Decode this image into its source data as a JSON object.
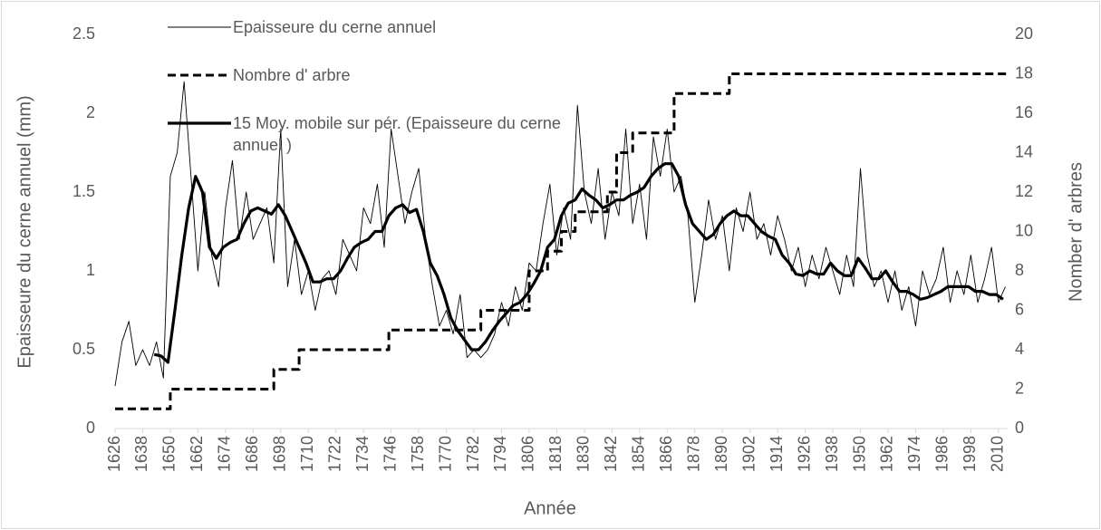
{
  "chart_data": {
    "type": "line",
    "xlabel": "Année",
    "ylabel": "Epaisseure du cerne annuel (mm)",
    "y2label": "Nomber d' arbres",
    "xlim": [
      1626,
      2014
    ],
    "xticks": [
      1626,
      1638,
      1650,
      1662,
      1674,
      1686,
      1698,
      1710,
      1722,
      1734,
      1746,
      1758,
      1770,
      1782,
      1794,
      1806,
      1818,
      1830,
      1842,
      1854,
      1866,
      1878,
      1890,
      1902,
      1914,
      1926,
      1938,
      1950,
      1962,
      1974,
      1986,
      1998,
      2010
    ],
    "ylim": [
      0,
      2.5
    ],
    "yticks": [
      0,
      0.5,
      1,
      1.5,
      2,
      2.5
    ],
    "y2lim": [
      0,
      20
    ],
    "y2ticks": [
      0,
      2,
      4,
      6,
      8,
      10,
      12,
      14,
      16,
      18,
      20
    ],
    "grid": false,
    "legend": "top-left",
    "series": [
      {
        "name": "Epaisseure du cerne annuel",
        "color": "#000000",
        "style": "thin",
        "x": [
          1626,
          1629,
          1632,
          1635,
          1638,
          1641,
          1644,
          1647,
          1650,
          1653,
          1656,
          1659,
          1662,
          1665,
          1668,
          1671,
          1674,
          1677,
          1680,
          1683,
          1686,
          1689,
          1692,
          1695,
          1698,
          1701,
          1704,
          1707,
          1710,
          1713,
          1716,
          1719,
          1722,
          1725,
          1728,
          1731,
          1734,
          1737,
          1740,
          1743,
          1746,
          1749,
          1752,
          1755,
          1758,
          1761,
          1764,
          1767,
          1770,
          1773,
          1776,
          1779,
          1782,
          1785,
          1788,
          1791,
          1794,
          1797,
          1800,
          1803,
          1806,
          1809,
          1812,
          1815,
          1818,
          1821,
          1824,
          1827,
          1830,
          1833,
          1836,
          1839,
          1842,
          1845,
          1848,
          1851,
          1854,
          1857,
          1860,
          1863,
          1866,
          1869,
          1872,
          1875,
          1878,
          1881,
          1884,
          1887,
          1890,
          1893,
          1896,
          1899,
          1902,
          1905,
          1908,
          1911,
          1914,
          1917,
          1920,
          1923,
          1926,
          1929,
          1932,
          1935,
          1938,
          1941,
          1944,
          1947,
          1950,
          1953,
          1956,
          1959,
          1962,
          1965,
          1968,
          1971,
          1974,
          1977,
          1980,
          1983,
          1986,
          1989,
          1992,
          1995,
          1998,
          2001,
          2004,
          2007,
          2010,
          2013
        ],
        "values": [
          0.27,
          0.55,
          0.68,
          0.4,
          0.5,
          0.4,
          0.55,
          0.32,
          1.6,
          1.75,
          2.2,
          1.6,
          1.0,
          1.5,
          1.1,
          0.9,
          1.4,
          1.7,
          1.2,
          1.5,
          1.2,
          1.3,
          1.4,
          1.05,
          1.9,
          0.9,
          1.2,
          0.85,
          1.0,
          0.75,
          0.95,
          1.0,
          0.85,
          1.2,
          1.1,
          1.0,
          1.4,
          1.3,
          1.55,
          1.15,
          1.9,
          1.6,
          1.3,
          1.5,
          1.65,
          1.2,
          0.9,
          0.65,
          0.75,
          0.6,
          0.85,
          0.45,
          0.5,
          0.45,
          0.5,
          0.6,
          0.8,
          0.65,
          0.9,
          0.75,
          1.05,
          1.0,
          1.3,
          1.55,
          1.1,
          1.4,
          1.2,
          2.05,
          1.5,
          1.3,
          1.65,
          1.2,
          1.5,
          1.35,
          1.9,
          1.3,
          1.55,
          1.2,
          1.85,
          1.6,
          1.9,
          1.5,
          1.6,
          1.35,
          0.8,
          1.1,
          1.45,
          1.2,
          1.35,
          1.0,
          1.4,
          1.25,
          1.5,
          1.2,
          1.3,
          1.1,
          1.35,
          1.2,
          1.0,
          1.15,
          0.9,
          1.1,
          0.95,
          1.15,
          1.0,
          0.85,
          1.1,
          0.9,
          1.65,
          1.1,
          0.9,
          1.0,
          0.8,
          1.0,
          0.75,
          0.9,
          0.65,
          1.0,
          0.85,
          0.95,
          1.15,
          0.8,
          1.0,
          0.85,
          1.1,
          0.8,
          0.95,
          1.15,
          0.8,
          0.9
        ]
      },
      {
        "name": "Nombre d' arbre",
        "color": "#000000",
        "style": "dashed",
        "step": true,
        "axis": "y2",
        "x": [
          1626,
          1650,
          1695,
          1706,
          1745,
          1785,
          1806,
          1814,
          1820,
          1826,
          1840,
          1844,
          1851,
          1869,
          1893,
          2014
        ],
        "values": [
          1,
          2,
          3,
          4,
          5,
          6,
          8,
          9,
          10,
          11,
          12,
          14,
          15,
          17,
          18,
          18
        ]
      },
      {
        "name": "15 Moy. mobile sur pér. (Epaisseure du cerne annuel )",
        "color": "#000000",
        "style": "thick",
        "x": [
          1643,
          1646,
          1649,
          1652,
          1655,
          1658,
          1661,
          1664,
          1667,
          1670,
          1673,
          1676,
          1679,
          1682,
          1685,
          1688,
          1691,
          1694,
          1697,
          1700,
          1703,
          1706,
          1709,
          1712,
          1715,
          1718,
          1721,
          1724,
          1727,
          1730,
          1733,
          1736,
          1739,
          1742,
          1745,
          1748,
          1751,
          1754,
          1757,
          1760,
          1763,
          1766,
          1769,
          1772,
          1775,
          1778,
          1781,
          1784,
          1787,
          1790,
          1793,
          1796,
          1799,
          1802,
          1805,
          1808,
          1811,
          1814,
          1817,
          1820,
          1823,
          1826,
          1829,
          1832,
          1835,
          1838,
          1841,
          1844,
          1847,
          1850,
          1853,
          1856,
          1859,
          1862,
          1865,
          1868,
          1871,
          1874,
          1877,
          1880,
          1883,
          1886,
          1889,
          1892,
          1895,
          1898,
          1901,
          1904,
          1907,
          1910,
          1913,
          1916,
          1919,
          1922,
          1925,
          1928,
          1931,
          1934,
          1937,
          1940,
          1943,
          1946,
          1949,
          1952,
          1955,
          1958,
          1961,
          1964,
          1967,
          1970,
          1973,
          1976,
          1979,
          1982,
          1985,
          1988,
          1991,
          1994,
          1997,
          2000,
          2003,
          2006,
          2009,
          2012
        ],
        "values": [
          0.47,
          0.46,
          0.42,
          0.75,
          1.1,
          1.4,
          1.6,
          1.5,
          1.15,
          1.08,
          1.15,
          1.18,
          1.2,
          1.3,
          1.38,
          1.4,
          1.38,
          1.36,
          1.42,
          1.35,
          1.25,
          1.15,
          1.05,
          0.93,
          0.93,
          0.95,
          0.95,
          1.0,
          1.08,
          1.15,
          1.18,
          1.2,
          1.25,
          1.25,
          1.35,
          1.4,
          1.42,
          1.37,
          1.39,
          1.25,
          1.05,
          0.97,
          0.85,
          0.7,
          0.62,
          0.56,
          0.5,
          0.5,
          0.55,
          0.62,
          0.68,
          0.73,
          0.78,
          0.8,
          0.85,
          0.92,
          1.0,
          1.15,
          1.2,
          1.35,
          1.43,
          1.45,
          1.52,
          1.48,
          1.45,
          1.4,
          1.42,
          1.45,
          1.45,
          1.48,
          1.5,
          1.53,
          1.6,
          1.65,
          1.68,
          1.68,
          1.6,
          1.42,
          1.3,
          1.25,
          1.2,
          1.23,
          1.3,
          1.35,
          1.38,
          1.35,
          1.35,
          1.3,
          1.25,
          1.22,
          1.2,
          1.1,
          1.05,
          0.98,
          0.97,
          1.0,
          0.98,
          0.98,
          1.05,
          1.0,
          0.97,
          0.97,
          1.08,
          1.02,
          0.95,
          0.95,
          1.0,
          0.93,
          0.87,
          0.87,
          0.85,
          0.82,
          0.83,
          0.85,
          0.87,
          0.9,
          0.9,
          0.9,
          0.9,
          0.87,
          0.87,
          0.85,
          0.85,
          0.82
        ]
      }
    ]
  }
}
